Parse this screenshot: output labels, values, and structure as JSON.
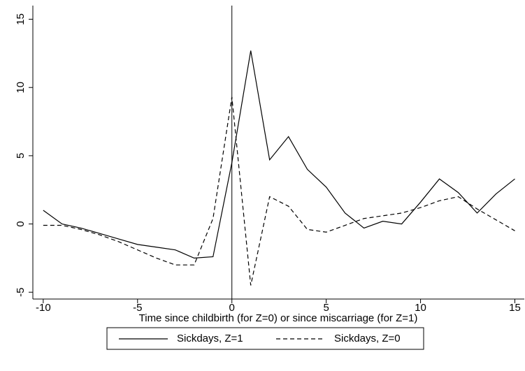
{
  "chart_data": {
    "type": "line",
    "x_label": "Time since childbirth (for Z=0) or since miscarriage (for Z=1)",
    "x": [
      -10,
      -9,
      -8,
      -7,
      -6,
      -5,
      -4,
      -3,
      -2,
      -1,
      0,
      1,
      2,
      3,
      4,
      5,
      6,
      7,
      8,
      9,
      10,
      11,
      12,
      13,
      14,
      15
    ],
    "series": [
      {
        "name": "Sickdays, Z=1",
        "color": "#000000",
        "dash": "solid",
        "values": [
          1.0,
          0.0,
          -0.3,
          -0.7,
          -1.1,
          -1.5,
          -1.7,
          -1.9,
          -2.5,
          -2.4,
          4.5,
          12.7,
          4.7,
          6.4,
          4.0,
          2.7,
          0.8,
          -0.3,
          0.2,
          0.0,
          1.6,
          3.3,
          2.3,
          0.8,
          2.2,
          3.3
        ]
      },
      {
        "name": "Sickdays, Z=0",
        "color": "#000000",
        "dash": "dashed",
        "values": [
          -0.1,
          -0.1,
          -0.4,
          -0.8,
          -1.3,
          -1.9,
          -2.5,
          -3.0,
          -3.0,
          0.4,
          9.3,
          -4.5,
          2.0,
          1.3,
          -0.4,
          -0.6,
          -0.1,
          0.4,
          0.6,
          0.8,
          1.2,
          1.7,
          2.0,
          1.1,
          0.3,
          -0.5
        ]
      }
    ],
    "xlim": [
      -10.55,
      15.5
    ],
    "xticks": [
      -10,
      -5,
      0,
      5,
      10,
      15
    ],
    "ylim": [
      -5.5,
      16
    ],
    "yticks": [
      -5,
      0,
      5,
      10,
      15
    ],
    "xline": 0,
    "legend": "bottom"
  }
}
